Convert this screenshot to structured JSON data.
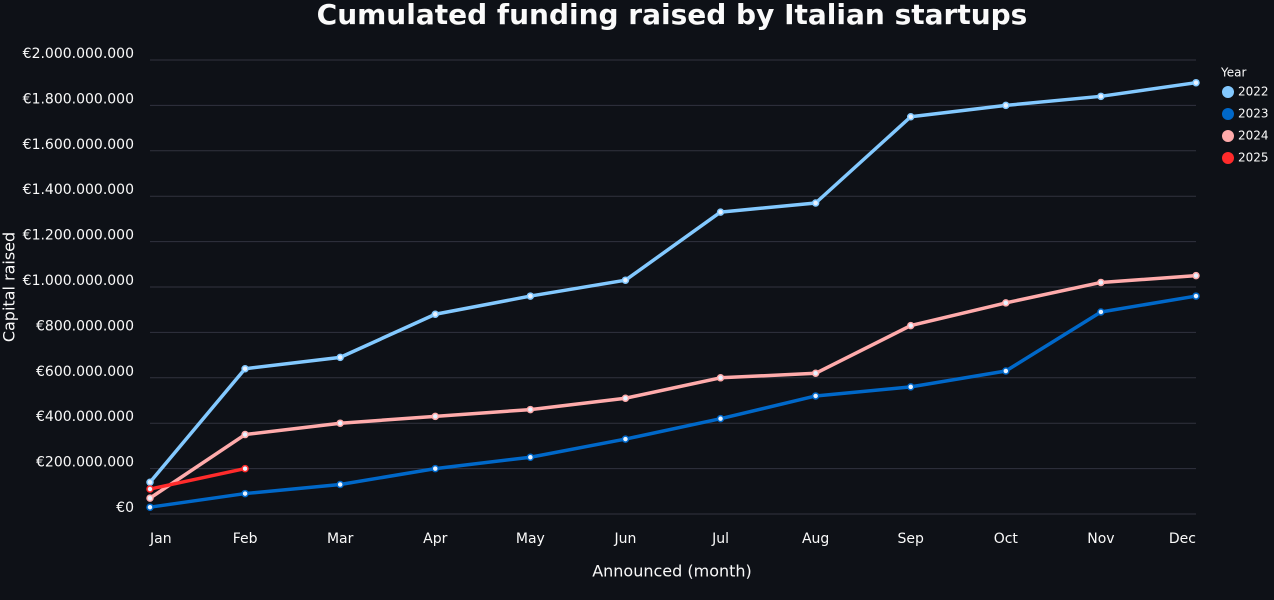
{
  "chart_data": {
    "type": "line",
    "title": "Cumulated funding raised by Italian startups",
    "x_label": "Announced (month)",
    "y_label": "Capital raised",
    "legend_title": "Year",
    "legend_position": "right",
    "grid": true,
    "categories": [
      "Jan",
      "Feb",
      "Mar",
      "Apr",
      "May",
      "Jun",
      "Jul",
      "Aug",
      "Sep",
      "Oct",
      "Nov",
      "Dec"
    ],
    "series": [
      {
        "name": "2022",
        "color": "#83c9ff",
        "values": [
          140000000,
          640000000,
          690000000,
          880000000,
          960000000,
          1030000000,
          1330000000,
          1370000000,
          1750000000,
          1800000000,
          1840000000,
          1900000000
        ]
      },
      {
        "name": "2023",
        "color": "#0068c9",
        "values": [
          30000000,
          90000000,
          130000000,
          200000000,
          250000000,
          330000000,
          420000000,
          520000000,
          560000000,
          630000000,
          890000000,
          960000000
        ]
      },
      {
        "name": "2024",
        "color": "#ffabab",
        "values": [
          70000000,
          350000000,
          400000000,
          430000000,
          460000000,
          510000000,
          600000000,
          620000000,
          830000000,
          930000000,
          1020000000,
          1050000000
        ]
      },
      {
        "name": "2025",
        "color": "#ff2b2b",
        "values": [
          110000000,
          200000000,
          null,
          null,
          null,
          null,
          null,
          null,
          null,
          null,
          null,
          null
        ]
      }
    ],
    "ylim": [
      0,
      2000000000
    ],
    "yticks": [
      {
        "value": 0,
        "label": "€0"
      },
      {
        "value": 200000000,
        "label": "€200.000.000"
      },
      {
        "value": 400000000,
        "label": "€400.000.000"
      },
      {
        "value": 600000000,
        "label": "€600.000.000"
      },
      {
        "value": 800000000,
        "label": "€800.000.000"
      },
      {
        "value": 1000000000,
        "label": "€1.000.000.000"
      },
      {
        "value": 1200000000,
        "label": "€1.200.000.000"
      },
      {
        "value": 1400000000,
        "label": "€1.400.000.000"
      },
      {
        "value": 1600000000,
        "label": "€1.600.000.000"
      },
      {
        "value": 1800000000,
        "label": "€1.800.000.000"
      },
      {
        "value": 2000000000,
        "label": "€2.000.000.000"
      }
    ]
  }
}
